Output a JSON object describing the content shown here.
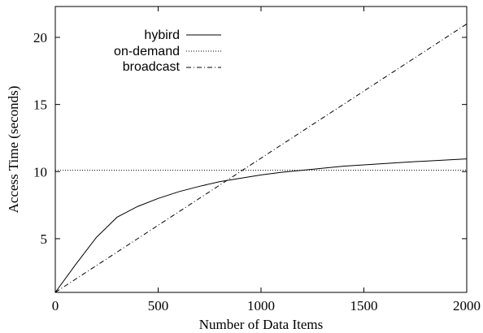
{
  "chart_data": {
    "type": "line",
    "xlabel": "Number of Data Items",
    "ylabel": "Access Time (seconds)",
    "xlim": [
      0,
      2000
    ],
    "ylim": [
      1,
      22.3
    ],
    "x_ticks": [
      0,
      500,
      1000,
      1500,
      2000
    ],
    "y_ticks": [
      5,
      10,
      15,
      20
    ],
    "grid": false,
    "legend_position": "top-left",
    "series": [
      {
        "name": "hybird",
        "style": "solid",
        "color": "#000000",
        "x": [
          0,
          100,
          200,
          300,
          400,
          500,
          600,
          700,
          800,
          900,
          1000,
          1100,
          1200,
          1300,
          1400,
          1500,
          1600,
          1700,
          1800,
          1900,
          2000
        ],
        "y": [
          1.0,
          3.1,
          5.1,
          6.6,
          7.4,
          8.0,
          8.5,
          8.9,
          9.25,
          9.5,
          9.75,
          9.95,
          10.1,
          10.25,
          10.4,
          10.5,
          10.6,
          10.7,
          10.78,
          10.86,
          10.95
        ]
      },
      {
        "name": "on-demand",
        "style": "dotted",
        "color": "#000000",
        "x": [
          0,
          2000
        ],
        "y": [
          10.1,
          10.1
        ]
      },
      {
        "name": "broadcast",
        "style": "dashdot",
        "color": "#000000",
        "x": [
          0,
          2000
        ],
        "y": [
          1.0,
          21.0
        ]
      }
    ]
  }
}
